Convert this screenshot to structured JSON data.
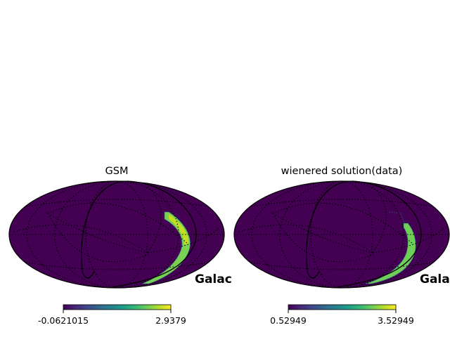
{
  "panels": [
    {
      "title": "GSM",
      "side_label": "Galac",
      "colorbar": {
        "min_label": "-0.0621015",
        "max_label": "2.9379"
      }
    },
    {
      "title": "wienered solution(data)",
      "side_label": "Gala",
      "colorbar": {
        "min_label": "0.52949",
        "max_label": "3.52949"
      }
    }
  ],
  "chart_data": [
    {
      "type": "heatmap",
      "projection": "mollweide",
      "title": "GSM",
      "colormap": "viridis",
      "color_range": [
        -0.0621015,
        2.9379
      ],
      "background_value": -0.0621015,
      "graticule": true
    },
    {
      "type": "heatmap",
      "projection": "mollweide",
      "title": "wienered solution(data)",
      "colormap": "viridis",
      "color_range": [
        0.52949,
        3.52949
      ],
      "background_value": 0.52949,
      "graticule": true
    }
  ],
  "colors": {
    "background_fill": "#440154",
    "band_fill": "#7ad151",
    "band_highlight": "#c2df23",
    "band_edge": "#2a788e",
    "viridis": [
      "#440154",
      "#482878",
      "#3e4989",
      "#31688e",
      "#26828e",
      "#1f9e89",
      "#35b779",
      "#6ece58",
      "#b5de2b",
      "#fde725"
    ]
  }
}
